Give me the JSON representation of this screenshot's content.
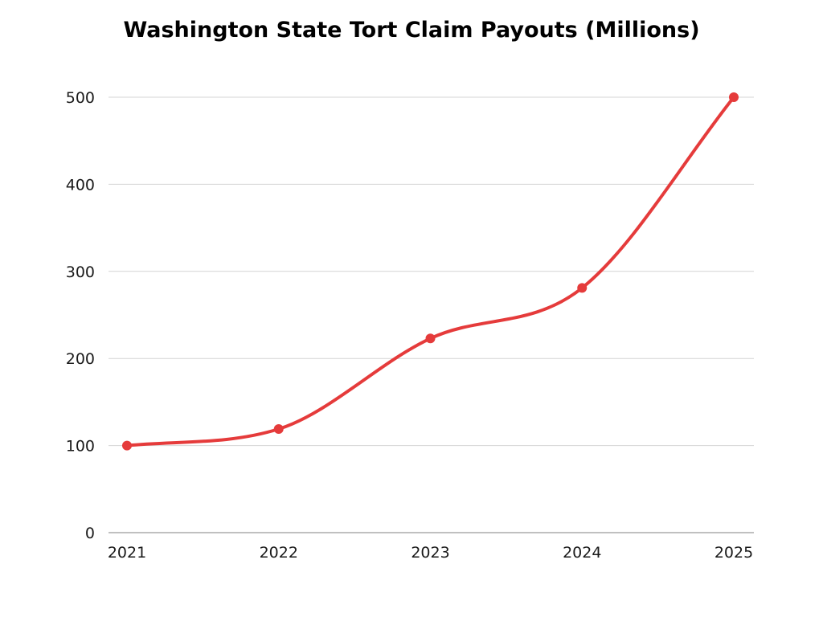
{
  "chart_data": {
    "type": "line",
    "title": "Washington State Tort Claim Payouts (Millions)",
    "xlabel": "",
    "ylabel": "",
    "categories": [
      "2021",
      "2022",
      "2023",
      "2024",
      "2025"
    ],
    "series": [
      {
        "values": [
          100,
          119,
          223,
          281,
          500
        ]
      }
    ],
    "ylim": [
      0,
      500
    ],
    "yticks": [
      0,
      100,
      200,
      300,
      400,
      500
    ],
    "grid": true,
    "legend": "none",
    "smooth": true,
    "line_color": "#e53b3b"
  }
}
